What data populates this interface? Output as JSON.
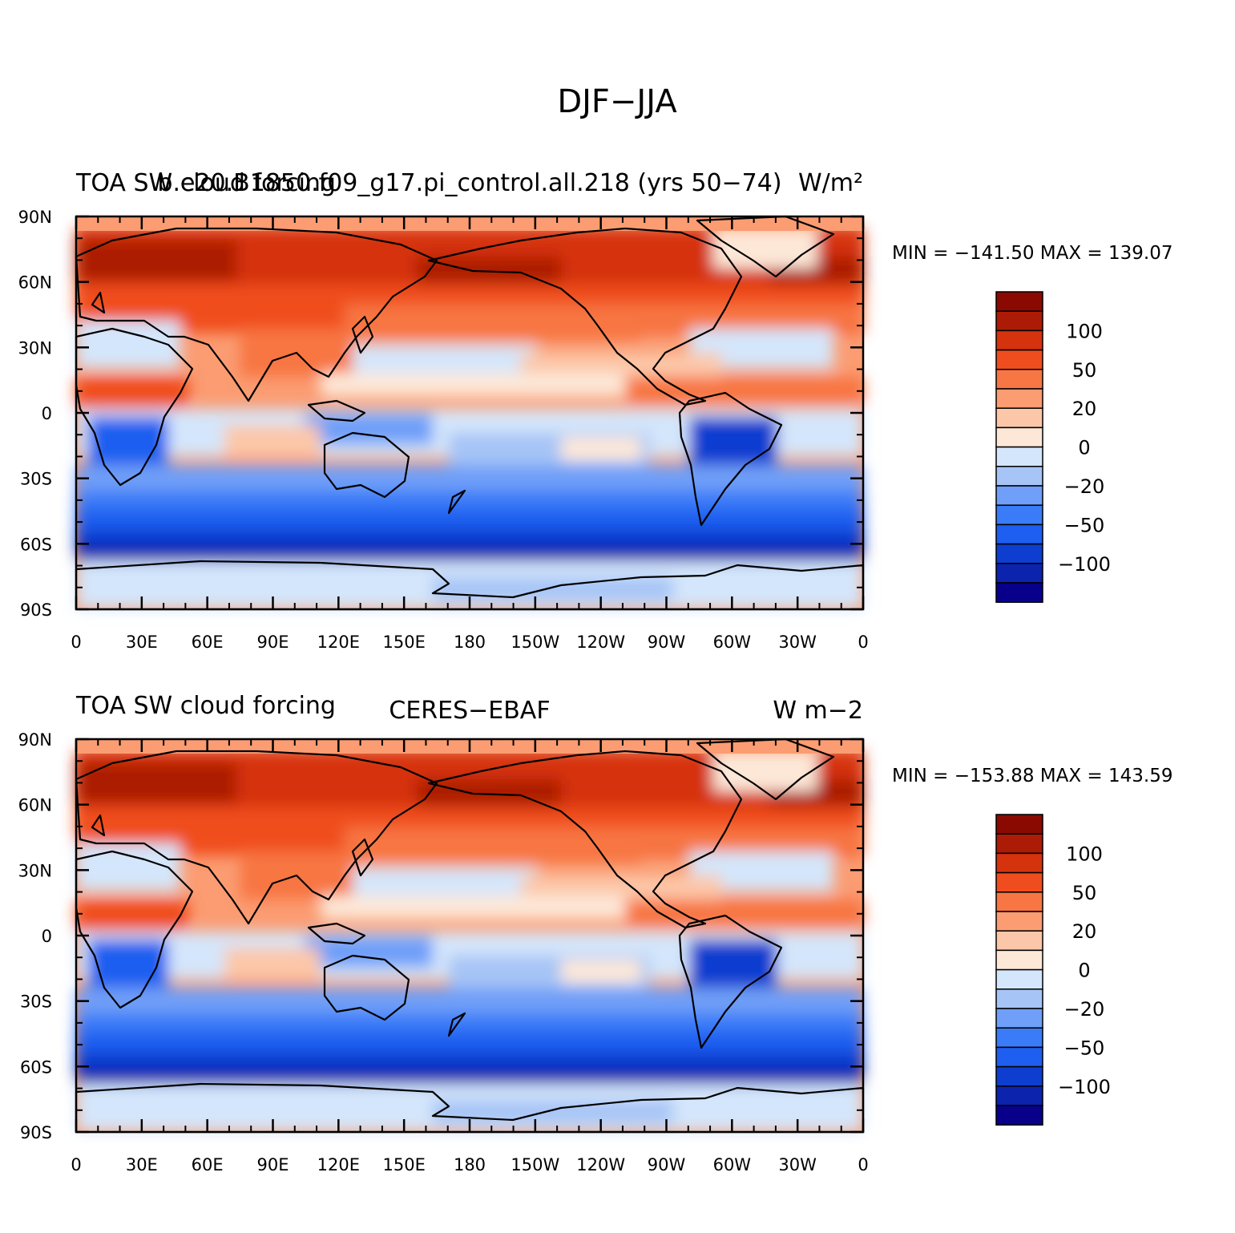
{
  "figure": {
    "title": "DJF−JJA"
  },
  "colorbar": {
    "colors": [
      "#08008a",
      "#0c23ad",
      "#0e3ed0",
      "#1e5ef0",
      "#3a7cf8",
      "#6f9ff8",
      "#a6c4f6",
      "#d4e6fb",
      "#fde8d8",
      "#fcc7a9",
      "#fb9c72",
      "#f77643",
      "#f04d1e",
      "#d5320e",
      "#ac1b06",
      "#8a0a02"
    ],
    "labels": [
      "100",
      "50",
      "20",
      "0",
      "−20",
      "−50",
      "−100"
    ]
  },
  "axes": {
    "xticks": [
      "0",
      "30E",
      "60E",
      "90E",
      "120E",
      "150E",
      "180",
      "150W",
      "120W",
      "90W",
      "60W",
      "30W",
      "0"
    ],
    "yticks": [
      "90N",
      "60N",
      "30N",
      "0",
      "30S",
      "60S",
      "90S"
    ]
  },
  "panels": [
    {
      "left_title": "TOA SW cloud forcing",
      "center_title": "b.e20.B1850.f09_g17.pi_control.all.218 (yrs 50−74)",
      "right_title": "W/m²",
      "min_max": "MIN = −141.50  MAX = 139.07"
    },
    {
      "left_title": "TOA SW cloud forcing",
      "center_title": "CERES−EBAF",
      "right_title": "W m−2",
      "min_max": "MIN = −153.88  MAX = 143.59"
    }
  ]
}
